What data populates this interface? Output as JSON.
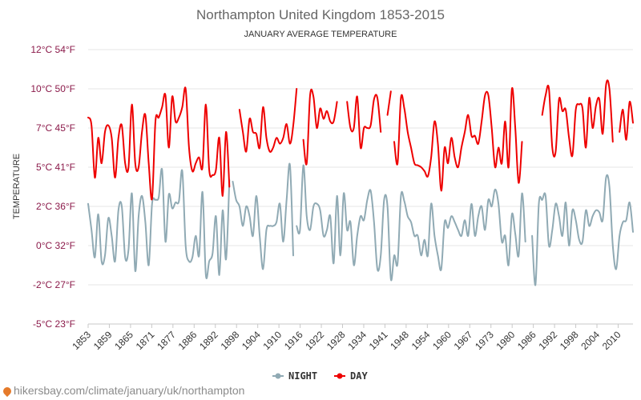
{
  "chart_data": {
    "type": "line",
    "title": "Northampton United Kingdom 1853-2015",
    "subtitle": "JANUARY AVERAGE TEMPERATURE",
    "ylabel": "TEMPERATURE",
    "ylim": [
      -5,
      12
    ],
    "xlim": [
      1853,
      2015
    ],
    "y_ticks": [
      {
        "value": 12,
        "label": "12°C 54°F"
      },
      {
        "value": 10,
        "label": "10°C 50°F"
      },
      {
        "value": 7,
        "label": "7°C 45°F"
      },
      {
        "value": 5,
        "label": "5°C 41°F"
      },
      {
        "value": 2,
        "label": "2°C 36°F"
      },
      {
        "value": 0,
        "label": "0°C 32°F"
      },
      {
        "value": -2,
        "label": "-2°C 27°F"
      },
      {
        "value": -5,
        "label": "-5°C 23°F"
      }
    ],
    "x_ticks": [
      "1853",
      "1859",
      "1865",
      "1871",
      "1877",
      "1886",
      "1892",
      "1898",
      "1904",
      "1910",
      "1916",
      "1922",
      "1928",
      "1934",
      "1941",
      "1948",
      "1954",
      "1960",
      "1967",
      "1973",
      "1980",
      "1986",
      "1992",
      "1998",
      "2004",
      "2010"
    ],
    "series": [
      {
        "name": "DAY",
        "color": "#ee0000",
        "segments": [
          {
            "start": 1853,
            "values": [
              7.8,
              7.2,
              4.2,
              6.5,
              5.2,
              6.8,
              7.2,
              6.5,
              4.2,
              6.5,
              7.2,
              5.2,
              5.0,
              8.8,
              5.2,
              5.0,
              6.8,
              8.0,
              5.2,
              2.6,
              7.5,
              7.8,
              8.6,
              9.5,
              6.0,
              9.4,
              7.5,
              7.8,
              8.6,
              10.0,
              6.0,
              4.7,
              5.2,
              5.5,
              5.0,
              8.8,
              4.8,
              4.4,
              4.8,
              6.5,
              2.8,
              6.8,
              3.5
            ]
          },
          {
            "start": 1898,
            "values": [
              8.4,
              6.8,
              5.8,
              7.7,
              6.8,
              6.7,
              6.0,
              8.6,
              6.5,
              5.8,
              6.0,
              6.5,
              6.2,
              6.5,
              7.3,
              6.2,
              7.2,
              10.0
            ]
          },
          {
            "start": 1917,
            "values": [
              6.4,
              5.2,
              9.5,
              9.4,
              7.0,
              8.5,
              7.7,
              8.3,
              7.5,
              7.5,
              9.0
            ]
          },
          {
            "start": 1930,
            "values": [
              9.0,
              7.0,
              7.0,
              9.4,
              6.0,
              7.0,
              7.0,
              7.2,
              9.2,
              9.3,
              6.8
            ]
          },
          {
            "start": 1942,
            "values": [
              8.0,
              9.8
            ]
          },
          {
            "start": 1944,
            "values": [
              6.3,
              5.2,
              9.3,
              8.5,
              6.8,
              6.0,
              5.2,
              5.1,
              5.0,
              4.7,
              4.3,
              5.5,
              7.5,
              6.2,
              3.2,
              6.0,
              5.2,
              6.5,
              5.5,
              5.0,
              6.0,
              6.8,
              8.0,
              6.6,
              6.6,
              6.2,
              7.5,
              9.5,
              9.5,
              7.0,
              5.0,
              6.0,
              5.2,
              7.5,
              5.0,
              10.0,
              7.0,
              3.8,
              6.3
            ]
          },
          {
            "start": 1988,
            "values": [
              8.0,
              9.5,
              10.0,
              6.0,
              5.8,
              9.2,
              8.3,
              8.4,
              6.5,
              5.6,
              8.4,
              8.8,
              8.5,
              6.0,
              9.3,
              7.0,
              8.7,
              9.2,
              6.7,
              10.2,
              10.0,
              6.3
            ]
          },
          {
            "start": 2011,
            "values": [
              6.8,
              8.4,
              6.4,
              9.0,
              7.4
            ]
          }
        ]
      },
      {
        "name": "NIGHT",
        "color": "#90aab4",
        "segments": [
          {
            "start": 1853,
            "values": [
              2.2,
              0.8,
              -0.6,
              1.6,
              -0.8,
              -0.5,
              1.4,
              0.5,
              -0.8,
              1.8,
              2.0,
              -0.6,
              -0.2,
              3.0,
              -1.3,
              1.5,
              2.8,
              1.2,
              -1.0,
              2.2,
              2.5,
              2.7,
              4.8,
              0.2,
              2.9,
              1.9,
              2.3,
              2.4,
              4.7,
              0.0,
              -0.8,
              -0.6,
              0.5,
              -0.5,
              3.1,
              -1.5,
              -0.8,
              -0.4,
              1.5,
              -1.5,
              1.8,
              -0.7,
              4.0
            ]
          },
          {
            "start": 1896,
            "values": [
              3.9,
              2.5,
              2.0,
              1.0,
              2.0,
              1.5,
              0.5,
              2.8,
              0.5,
              -1.2,
              0.8,
              1.0,
              1.0,
              1.2,
              2.2,
              0.2,
              2.5,
              5.1,
              -0.5
            ]
          },
          {
            "start": 1915,
            "values": [
              1.0,
              0.8,
              5.1,
              1.5,
              0.8,
              2.0,
              2.2,
              1.8,
              0.5,
              0.8,
              1.5,
              -0.9,
              2.8,
              -0.5,
              3.0,
              0.8,
              1.2,
              -1.0,
              0.5,
              1.5,
              1.3,
              2.5,
              3.2,
              1.2,
              -1.2,
              -0.5,
              2.5,
              2.0,
              -1.7,
              -0.5,
              -0.9,
              2.8,
              2.4,
              1.5,
              1.2,
              0.5,
              0.5,
              -0.5,
              0.3,
              -0.5,
              2.2,
              0.5,
              -0.5,
              -1.2,
              1.2,
              0.9,
              1.5,
              1.2,
              0.8,
              0.5,
              1.3,
              0.5,
              2.2,
              0.5,
              1.5,
              2.0,
              0.8,
              2.5,
              2.0,
              3.3,
              2.2,
              0.2,
              0.5,
              -1.0,
              1.6,
              0.6,
              -0.5,
              3.0,
              0.2
            ]
          },
          {
            "start": 1985,
            "values": [
              0.5,
              -2.0,
              2.2,
              2.5,
              2.8,
              0.0,
              0.8,
              2.2,
              1.5,
              0.5,
              2.3,
              0.0,
              1.8,
              1.3,
              0.3,
              0.2,
              1.8,
              1.0,
              1.5,
              1.8,
              1.7,
              1.3,
              4.2,
              3.5,
              0.0,
              -1.2,
              0.5,
              1.2,
              1.3,
              2.3,
              0.7
            ]
          }
        ]
      }
    ]
  },
  "legend": {
    "night_label": "NIGHT",
    "day_label": "DAY"
  },
  "footer": {
    "url": "hikersbay.com/climate/january/uk/northampton"
  }
}
